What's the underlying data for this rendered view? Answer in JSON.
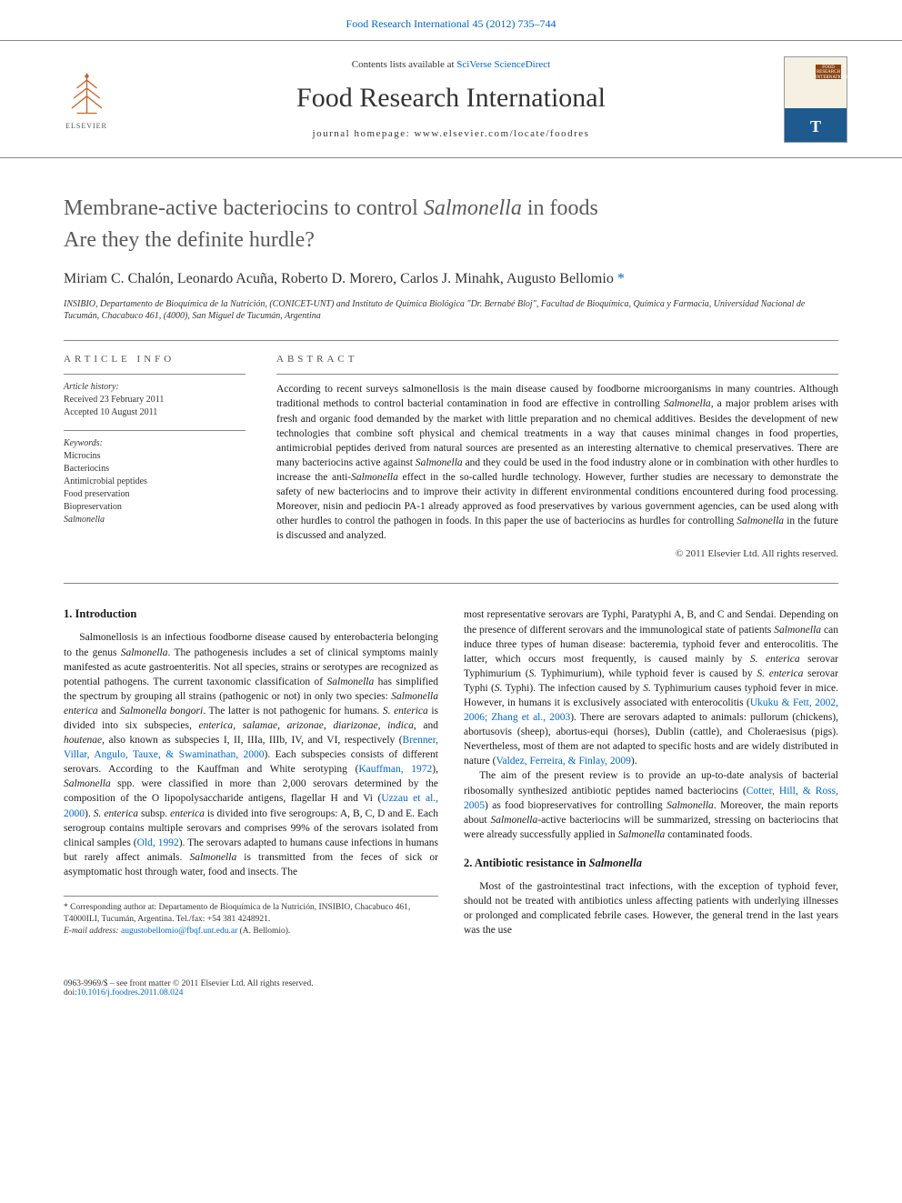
{
  "topLink": "Food Research International 45 (2012) 735–744",
  "masthead": {
    "contentsPrefix": "Contents lists available at ",
    "contentsLink": "SciVerse ScienceDirect",
    "journalName": "Food Research International",
    "homepageLabel": "journal homepage: ",
    "homepageUrl": "www.elsevier.com/locate/foodres",
    "elsevierLabel": "ELSEVIER",
    "coverBadge": "FOOD RESEARCH INTERNATIONAL",
    "coverT": "T"
  },
  "article": {
    "titleLine1": "Membrane-active bacteriocins to control <em>Salmonella</em> in foods",
    "titleLine2": "Are they the definite hurdle?",
    "authorsHtml": "Miriam C. Chalón, Leonardo Acuña, Roberto D. Morero, Carlos J. Minahk, Augusto Bellomio <a href=\"#\">*</a>",
    "affiliation": "INSIBIO, Departamento de Bioquímica de la Nutrición, (CONICET-UNT) and Instituto de Química Biológica \"Dr. Bernabé Bloj\", Facultad de Bioquímica, Química y Farmacia, Universidad Nacional de Tucumán, Chacabuco 461, (4000), San Miguel de Tucumán, Argentina"
  },
  "info": {
    "header": "ARTICLE INFO",
    "historyLabel": "Article history:",
    "received": "Received 23 February 2011",
    "accepted": "Accepted 10 August 2011",
    "keywordsLabel": "Keywords:",
    "keywords": [
      "Microcins",
      "Bacteriocins",
      "Antimicrobial peptides",
      "Food preservation",
      "Biopreservation",
      "Salmonella"
    ]
  },
  "abstract": {
    "header": "ABSTRACT",
    "textHtml": "According to recent surveys salmonellosis is the main disease caused by foodborne microorganisms in many countries. Although traditional methods to control bacterial contamination in food are effective in controlling <em>Salmonella</em>, a major problem arises with fresh and organic food demanded by the market with little preparation and no chemical additives. Besides the development of new technologies that combine soft physical and chemical treatments in a way that causes minimal changes in food properties, antimicrobial peptides derived from natural sources are presented as an interesting alternative to chemical preservatives. There are many bacteriocins active against <em>Salmonella</em> and they could be used in the food industry alone or in combination with other hurdles to increase the anti-<em>Salmonella</em> effect in the so-called hurdle technology. However, further studies are necessary to demonstrate the safety of new bacteriocins and to improve their activity in different environmental conditions encountered during food processing. Moreover, nisin and pediocin PA-1 already approved as food preservatives by various government agencies, can be used along with other hurdles to control the pathogen in foods. In this paper the use of bacteriocins as hurdles for controlling <em>Salmonella</em> in the future is discussed and analyzed.",
    "copyright": "© 2011 Elsevier Ltd. All rights reserved."
  },
  "body": {
    "sec1Heading": "1. Introduction",
    "sec1LeftHtml": "Salmonellosis is an infectious foodborne disease caused by enterobacteria belonging to the genus <em>Salmonella</em>. The pathogenesis includes a set of clinical symptoms mainly manifested as acute gastroenteritis. Not all species, strains or serotypes are recognized as potential pathogens. The current taxonomic classification of <em>Salmonella</em> has simplified the spectrum by grouping all strains (pathogenic or not) in only two species: <em>Salmonella enterica</em> and <em>Salmonella bongori</em>. The latter is not pathogenic for humans. <em>S. enterica</em> is divided into six subspecies, <em>enterica</em>, <em>salamae</em>, <em>arizonae</em>, <em>diarizonae</em>, <em>indica</em>, and <em>houtenae</em>, also known as subspecies I, II, IIIa, IIIb, IV, and VI, respectively (<a href=\"#\">Brenner, Villar, Angulo, Tauxe, &amp; Swaminathan, 2000</a>). Each subspecies consists of different serovars. According to the Kauffman and White serotyping (<a href=\"#\">Kauffman, 1972</a>), <em>Salmonella</em> spp. were classified in more than 2,000 serovars determined by the composition of the O lipopolysaccharide antigens, flagellar H and Vi (<a href=\"#\">Uzzau et al., 2000</a>). <em>S. enterica</em> subsp. <em>enterica</em> is divided into five serogroups: A, B, C, D and E. Each serogroup contains multiple serovars and comprises 99% of the serovars isolated from clinical samples (<a href=\"#\">Old, 1992</a>). The serovars adapted to humans cause infections in humans but rarely affect animals. <em>Salmonella</em> is transmitted from the feces of sick or asymptomatic host through water, food and insects. The",
    "sec1RightP1Html": "most representative serovars are Typhi, Paratyphi A, B, and C and Sendai. Depending on the presence of different serovars and the immunological state of patients <em>Salmonella</em> can induce three types of human disease: bacteremia, typhoid fever and enterocolitis. The latter, which occurs most frequently, is caused mainly by <em>S. enterica</em> serovar Typhimurium (<em>S.</em> Typhimurium), while typhoid fever is caused by <em>S. enterica</em> serovar Typhi (<em>S.</em> Typhi). The infection caused by <em>S.</em> Typhimurium causes typhoid fever in mice. However, in humans it is exclusively associated with enterocolitis (<a href=\"#\">Ukuku &amp; Fett, 2002, 2006; Zhang et al., 2003</a>). There are serovars adapted to animals: pullorum (chickens), abortusovis (sheep), abortus-equi (horses), Dublin (cattle), and Choleraesisus (pigs). Nevertheless, most of them are not adapted to specific hosts and are widely distributed in nature (<a href=\"#\">Valdez, Ferreira, &amp; Finlay, 2009</a>).",
    "sec1RightP2Html": "The aim of the present review is to provide an up-to-date analysis of bacterial ribosomally synthesized antibiotic peptides named bacteriocins (<a href=\"#\">Cotter, Hill, &amp; Ross, 2005</a>) as food biopreservatives for controlling <em>Salmonella</em>. Moreover, the main reports about <em>Salmonella</em>-active bacteriocins will be summarized, stressing on bacteriocins that were already successfully applied in <em>Salmonella</em> contaminated foods.",
    "sec2Heading": "2. Antibiotic resistance in <em>Salmonella</em>",
    "sec2Html": "Most of the gastrointestinal tract infections, with the exception of typhoid fever, should not be treated with antibiotics unless affecting patients with underlying illnesses or prolonged and complicated febrile cases. However, the general trend in the last years was the use"
  },
  "footnotes": {
    "corrHtml": "* Corresponding author at: Departamento de Bioquímica de la Nutrición, INSIBIO, Chacabuco 461, T4000ILI, Tucumán, Argentina. Tel./fax: +54 381 4248921.",
    "emailLabel": "E-mail address: ",
    "emailLink": "augustobellomio@fbqf.unt.edu.ar",
    "emailSuffix": " (A. Bellomio)."
  },
  "bottom": {
    "left1": "0963-9969/$ – see front matter © 2011 Elsevier Ltd. All rights reserved.",
    "left2Prefix": "doi:",
    "left2Link": "10.1016/j.foodres.2011.08.024"
  },
  "colors": {
    "link": "#0066cc",
    "headingGray": "#5a5a5a",
    "bodyText": "#1a1a1a",
    "rule": "#888888",
    "elsevierOrange": "#c86428",
    "coverTop": "#f5f0e1",
    "coverBottom": "#1e5a8e",
    "coverBadge": "#8b4513"
  },
  "typography": {
    "journalNameSize": 30,
    "articleTitleSize": 24,
    "authorsSize": 16,
    "sectionHeadingSize": 12.5,
    "bodySize": 11.5,
    "abstractSize": 11.5,
    "infoTextSize": 10,
    "footnoteSize": 9.5
  },
  "layout": {
    "pageWidth": 992,
    "pageHeight": 1323,
    "contentPaddingX": 70,
    "columnGap": 28,
    "infoColWidth": 200
  }
}
